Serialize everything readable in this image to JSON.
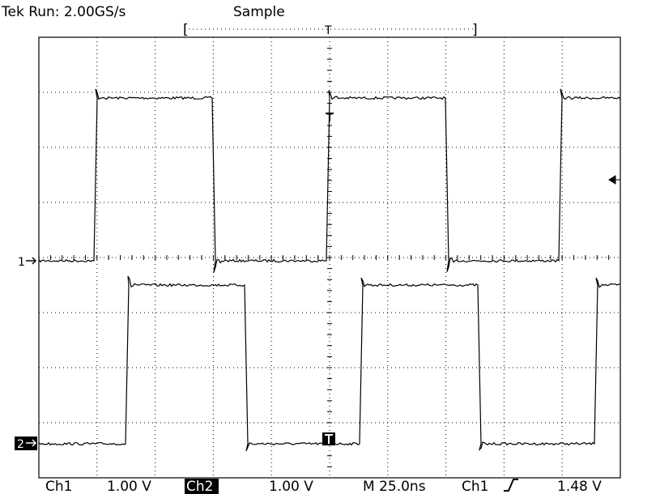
{
  "header": {
    "status": "Tek Run: 2.00GS/s",
    "mode": "Sample",
    "trigger_position": "T"
  },
  "markers": {
    "ch1": "1",
    "ch2": "2"
  },
  "footer": {
    "ch1_label": "Ch1",
    "ch1_scale": "1.00 V",
    "ch2_label": "Ch2",
    "ch2_scale": "1.00 V",
    "timebase": "M 25.0ns",
    "trigger_source": "Ch1",
    "trigger_level": "1.48 V"
  }
}
